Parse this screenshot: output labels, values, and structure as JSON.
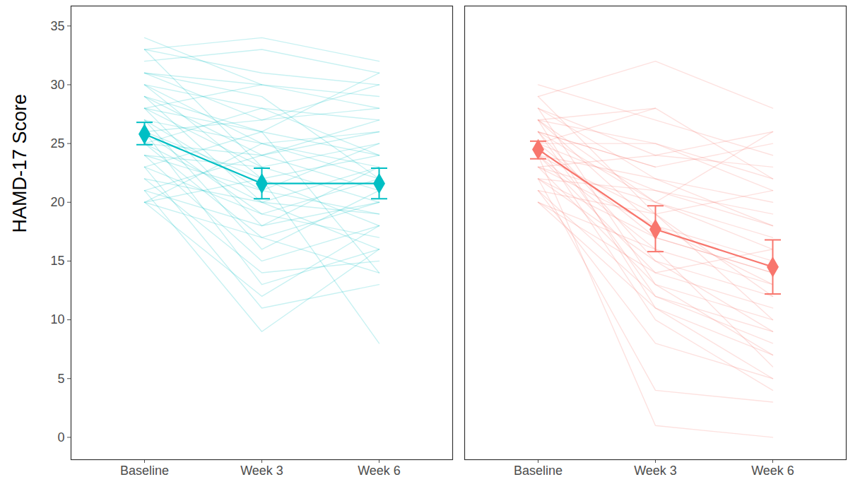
{
  "chart_data": [
    {
      "type": "line",
      "y_label": "HAMD-17 Score",
      "categories": [
        "Baseline",
        "Week 3",
        "Week 6"
      ],
      "ylim": [
        -1.9,
        36.7
      ],
      "yticks": [
        0,
        5,
        10,
        15,
        20,
        25,
        30,
        35
      ],
      "grid": false,
      "tick_labels": true,
      "series": [
        {
          "color": "#00BFC4",
          "marker": "diamond",
          "values": [
            25.8,
            21.6,
            21.6
          ],
          "error_low": [
            24.9,
            20.3,
            20.3
          ],
          "error_high": [
            26.8,
            22.9,
            22.9
          ]
        }
      ],
      "subjects": {
        "color": "#00BFC4",
        "values": [
          [
            34,
            30,
            28
          ],
          [
            33,
            34,
            32
          ],
          [
            33,
            31,
            30
          ],
          [
            32,
            33,
            31
          ],
          [
            31,
            29,
            22
          ],
          [
            31,
            27,
            30
          ],
          [
            30,
            25,
            26
          ],
          [
            30,
            28,
            24
          ],
          [
            30,
            22,
            18
          ],
          [
            29,
            24,
            27
          ],
          [
            29,
            20,
            16
          ],
          [
            28,
            30,
            29
          ],
          [
            28,
            23,
            25
          ],
          [
            28,
            18,
            20
          ],
          [
            28,
            26,
            14
          ],
          [
            27,
            25,
            22
          ],
          [
            27,
            21,
            19
          ],
          [
            27,
            16,
            21
          ],
          [
            26,
            27,
            28
          ],
          [
            26,
            22,
            24
          ],
          [
            26,
            19,
            17
          ],
          [
            26,
            13,
            16
          ],
          [
            25,
            24,
            26
          ],
          [
            25,
            20,
            23
          ],
          [
            25,
            17,
            14
          ],
          [
            25,
            28,
            27
          ],
          [
            24,
            23,
            20
          ],
          [
            24,
            15,
            18
          ],
          [
            24,
            21,
            25
          ],
          [
            23,
            11,
            13
          ],
          [
            23,
            19,
            22
          ],
          [
            23,
            26,
            24
          ],
          [
            22,
            20,
            19
          ],
          [
            22,
            14,
            15
          ],
          [
            21,
            9,
            16
          ],
          [
            21,
            18,
            23
          ],
          [
            21,
            24,
            21
          ],
          [
            20,
            17,
            20
          ],
          [
            20,
            22,
            8
          ],
          [
            20,
            12,
            18
          ],
          [
            20,
            25,
            23
          ],
          [
            33,
            23,
            null
          ],
          [
            31,
            30,
            null
          ],
          [
            29,
            26,
            31
          ]
        ]
      }
    },
    {
      "type": "line",
      "categories": [
        "Baseline",
        "Week 3",
        "Week 6"
      ],
      "ylim": [
        -1.9,
        36.7
      ],
      "grid": false,
      "tick_labels": "x",
      "series": [
        {
          "color": "#F8766D",
          "marker": "diamond",
          "values": [
            24.5,
            17.7,
            14.5
          ],
          "error_low": [
            23.7,
            15.8,
            12.2
          ],
          "error_high": [
            25.2,
            19.7,
            16.8
          ]
        }
      ],
      "subjects": {
        "color": "#F8766D",
        "values": [
          [
            30,
            27,
            24
          ],
          [
            29,
            32,
            28
          ],
          [
            29,
            19,
            10
          ],
          [
            28,
            24,
            26
          ],
          [
            28,
            13,
            7
          ],
          [
            28,
            22,
            18
          ],
          [
            27,
            28,
            22
          ],
          [
            27,
            18,
            13
          ],
          [
            27,
            11,
            5
          ],
          [
            27,
            25,
            21
          ],
          [
            26,
            20,
            16
          ],
          [
            26,
            15,
            9
          ],
          [
            26,
            23,
            25
          ],
          [
            26,
            12,
            8
          ],
          [
            25,
            21,
            19
          ],
          [
            25,
            17,
            14
          ],
          [
            25,
            25,
            22
          ],
          [
            25,
            10,
            4
          ],
          [
            24,
            19,
            12
          ],
          [
            24,
            14,
            11
          ],
          [
            24,
            22,
            20
          ],
          [
            24,
            1,
            0
          ],
          [
            24,
            16,
            6
          ],
          [
            23,
            20,
            17
          ],
          [
            23,
            13,
            10
          ],
          [
            23,
            18,
            15
          ],
          [
            23,
            24,
            23
          ],
          [
            22,
            15,
            12
          ],
          [
            22,
            4,
            3
          ],
          [
            22,
            17,
            14
          ],
          [
            22,
            21,
            18
          ],
          [
            21,
            12,
            9
          ],
          [
            21,
            19,
            21
          ],
          [
            21,
            8,
            5
          ],
          [
            20,
            16,
            13
          ],
          [
            20,
            14,
            16
          ],
          [
            20,
            11,
            7
          ],
          [
            26,
            23,
            null
          ],
          [
            25,
            28,
            null
          ],
          [
            27,
            20,
            26
          ]
        ]
      }
    }
  ]
}
